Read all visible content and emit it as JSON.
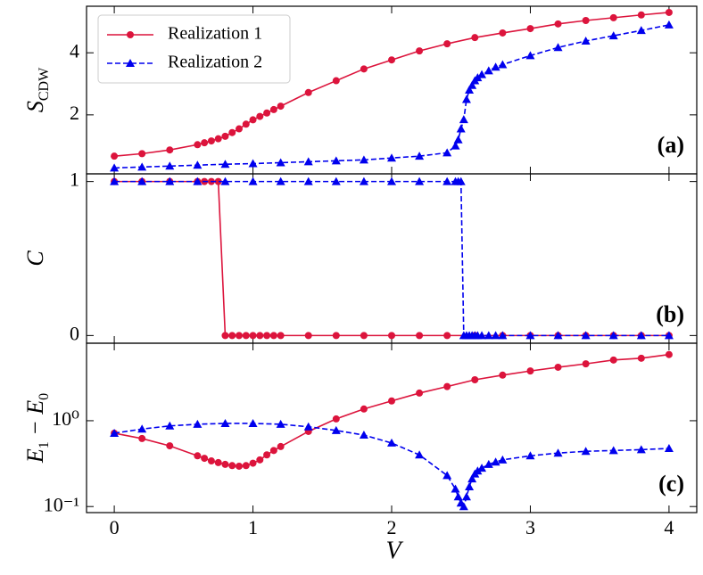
{
  "chart_data": [
    {
      "type": "line",
      "panel": "(a)",
      "ylabel": [
        {
          "text": "S"
        },
        {
          "text": "CDW",
          "sub": true
        }
      ],
      "xlim": [
        -0.2,
        4.2
      ],
      "xticks": [
        0,
        1,
        2,
        3,
        4
      ],
      "show_xticklabels": false,
      "ylim": [
        0.1,
        5.5
      ],
      "yticks": [
        2,
        4
      ],
      "yscale": "linear",
      "legend": "upper left",
      "series": [
        {
          "name": "Realization 1",
          "color": "#dc143c",
          "marker": "circle",
          "linestyle": "solid",
          "x": [
            0,
            0.2,
            0.4,
            0.6,
            0.65,
            0.7,
            0.75,
            0.8,
            0.85,
            0.9,
            0.95,
            1.0,
            1.05,
            1.1,
            1.15,
            1.2,
            1.4,
            1.6,
            1.8,
            2.0,
            2.2,
            2.4,
            2.6,
            2.8,
            3.0,
            3.2,
            3.4,
            3.6,
            3.8,
            4.0
          ],
          "values": [
            0.67,
            0.75,
            0.87,
            1.04,
            1.1,
            1.16,
            1.23,
            1.31,
            1.43,
            1.55,
            1.7,
            1.84,
            1.95,
            2.06,
            2.17,
            2.28,
            2.72,
            3.1,
            3.48,
            3.77,
            4.06,
            4.29,
            4.49,
            4.64,
            4.78,
            4.93,
            5.04,
            5.13,
            5.22,
            5.3
          ]
        },
        {
          "name": "Realization 2",
          "color": "#0000ee",
          "marker": "triangle",
          "linestyle": "dashed",
          "x": [
            0,
            0.2,
            0.4,
            0.6,
            0.8,
            1.0,
            1.2,
            1.4,
            1.6,
            1.8,
            2.0,
            2.2,
            2.4,
            2.46,
            2.48,
            2.5,
            2.52,
            2.54,
            2.56,
            2.58,
            2.6,
            2.62,
            2.65,
            2.7,
            2.75,
            2.8,
            3.0,
            3.2,
            3.4,
            3.6,
            3.8,
            4.0
          ],
          "values": [
            0.29,
            0.32,
            0.35,
            0.38,
            0.41,
            0.43,
            0.46,
            0.49,
            0.52,
            0.55,
            0.61,
            0.67,
            0.78,
            1.0,
            1.2,
            1.55,
            1.85,
            2.5,
            2.8,
            2.95,
            3.1,
            3.2,
            3.3,
            3.42,
            3.54,
            3.62,
            3.91,
            4.17,
            4.38,
            4.55,
            4.72,
            4.9
          ]
        }
      ]
    },
    {
      "type": "line",
      "panel": "(b)",
      "ylabel": [
        {
          "text": "C"
        }
      ],
      "xlim": [
        -0.2,
        4.2
      ],
      "xticks": [
        0,
        1,
        2,
        3,
        4
      ],
      "show_xticklabels": false,
      "ylim": [
        -0.05,
        1.05
      ],
      "yticks": [
        0,
        1
      ],
      "yscale": "linear",
      "series": [
        {
          "color": "#dc143c",
          "marker": "circle",
          "linestyle": "solid",
          "x": [
            0,
            0.2,
            0.4,
            0.6,
            0.65,
            0.7,
            0.75,
            0.8,
            0.85,
            0.9,
            0.95,
            1.0,
            1.05,
            1.1,
            1.15,
            1.2,
            1.4,
            1.6,
            1.8,
            2.0,
            2.2,
            2.4,
            2.6,
            2.8,
            3.0,
            3.2,
            3.4,
            3.6,
            3.8,
            4.0
          ],
          "values": [
            1,
            1,
            1,
            1,
            1,
            1,
            1,
            0,
            0,
            0,
            0,
            0,
            0,
            0,
            0,
            0,
            0,
            0,
            0,
            0,
            0,
            0,
            0,
            0,
            0,
            0,
            0,
            0,
            0,
            0
          ]
        },
        {
          "color": "#0000ee",
          "marker": "triangle",
          "linestyle": "dashed",
          "x": [
            0,
            0.2,
            0.4,
            0.6,
            0.8,
            1.0,
            1.2,
            1.4,
            1.6,
            1.8,
            2.0,
            2.2,
            2.4,
            2.46,
            2.48,
            2.5,
            2.52,
            2.54,
            2.56,
            2.58,
            2.6,
            2.62,
            2.65,
            2.7,
            2.75,
            2.8,
            3.0,
            3.2,
            3.4,
            3.6,
            3.8,
            4.0
          ],
          "values": [
            1,
            1,
            1,
            1,
            1,
            1,
            1,
            1,
            1,
            1,
            1,
            1,
            1,
            1,
            1,
            1,
            0,
            0,
            0,
            0,
            0,
            0,
            0,
            0,
            0,
            0,
            0,
            0,
            0,
            0,
            0,
            0
          ]
        }
      ]
    },
    {
      "type": "line",
      "panel": "(c)",
      "ylabel": [
        {
          "text": "E"
        },
        {
          "text": "1",
          "sub": true
        },
        {
          "text": " − E"
        },
        {
          "text": "0",
          "sub": true
        }
      ],
      "xlabel": "V",
      "xlim": [
        -0.2,
        4.2
      ],
      "xticks": [
        0,
        1,
        2,
        3,
        4
      ],
      "show_xticklabels": true,
      "ylim": [
        0.085,
        8
      ],
      "yticks": [
        {
          "value": 0.1,
          "label": "10⁻¹"
        },
        {
          "value": 1,
          "label": "10⁰"
        }
      ],
      "yscale": "log",
      "series": [
        {
          "color": "#dc143c",
          "marker": "circle",
          "linestyle": "solid",
          "x": [
            0,
            0.2,
            0.4,
            0.6,
            0.65,
            0.7,
            0.75,
            0.8,
            0.85,
            0.9,
            0.95,
            1.0,
            1.05,
            1.1,
            1.15,
            1.2,
            1.4,
            1.6,
            1.8,
            2.0,
            2.2,
            2.4,
            2.6,
            2.8,
            3.0,
            3.2,
            3.4,
            3.6,
            3.8,
            4.0
          ],
          "values": [
            0.715,
            0.62,
            0.51,
            0.39,
            0.365,
            0.34,
            0.325,
            0.31,
            0.3,
            0.295,
            0.3,
            0.32,
            0.35,
            0.4,
            0.45,
            0.5,
            0.75,
            1.05,
            1.37,
            1.7,
            2.1,
            2.5,
            3.0,
            3.4,
            3.8,
            4.2,
            4.6,
            5.1,
            5.35,
            5.9
          ]
        },
        {
          "color": "#0000ee",
          "marker": "triangle",
          "linestyle": "dashed",
          "x": [
            0,
            0.2,
            0.4,
            0.6,
            0.8,
            1.0,
            1.2,
            1.4,
            1.6,
            1.8,
            2.0,
            2.2,
            2.4,
            2.46,
            2.48,
            2.5,
            2.52,
            2.54,
            2.56,
            2.58,
            2.6,
            2.62,
            2.65,
            2.7,
            2.75,
            2.8,
            3.0,
            3.2,
            3.4,
            3.6,
            3.8,
            4.0
          ],
          "values": [
            0.715,
            0.8,
            0.87,
            0.91,
            0.93,
            0.93,
            0.91,
            0.85,
            0.77,
            0.68,
            0.55,
            0.4,
            0.23,
            0.16,
            0.13,
            0.11,
            0.1,
            0.13,
            0.17,
            0.21,
            0.24,
            0.26,
            0.28,
            0.31,
            0.33,
            0.35,
            0.39,
            0.42,
            0.44,
            0.45,
            0.46,
            0.475
          ]
        }
      ]
    }
  ]
}
